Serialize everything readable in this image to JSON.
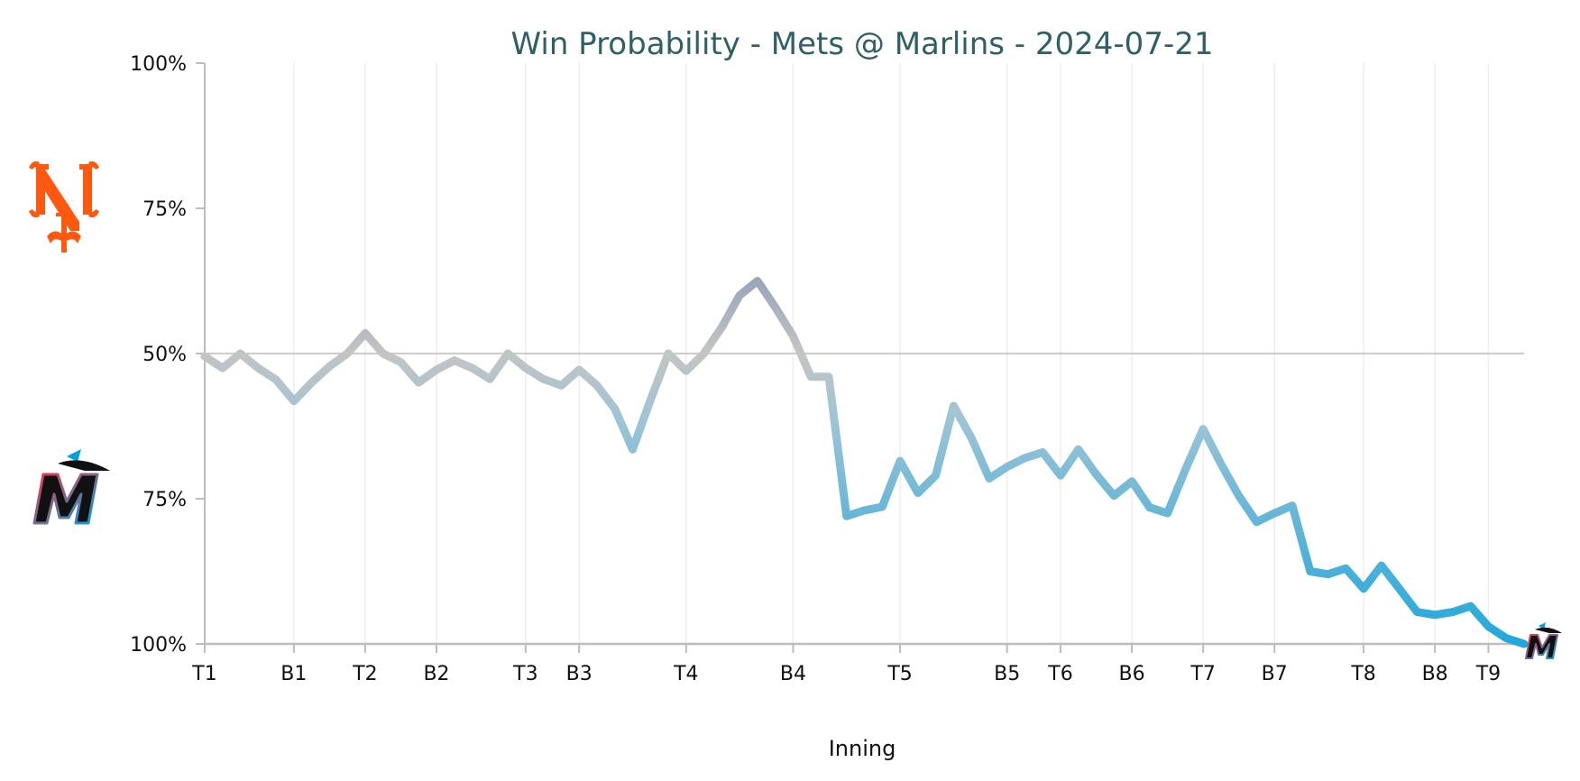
{
  "chart_data": {
    "type": "line",
    "title": "Win Probability - Mets @ Marlins - 2024-07-21",
    "xlabel": "Inning",
    "ylabel": "",
    "x_tick_labels": [
      "T1",
      "B1",
      "T2",
      "B2",
      "T3",
      "B3",
      "T4",
      "B4",
      "T5",
      "B5",
      "T6",
      "B6",
      "T7",
      "B7",
      "T8",
      "B8",
      "T9"
    ],
    "x_tick_positions": [
      0,
      5,
      9,
      13,
      18,
      21,
      27,
      33,
      39,
      45,
      48,
      52,
      56,
      60,
      65,
      69,
      72
    ],
    "x_range": [
      0,
      74
    ],
    "y_tick_values": [
      100,
      75,
      50,
      75,
      100
    ],
    "y_tick_labels": [
      "100%",
      "75%",
      "50%",
      "75%",
      "100%"
    ],
    "y_range": [
      0,
      100
    ],
    "grid": "vertical at inning ticks; horizontal reference at 50%",
    "top_team": "Mets",
    "bottom_team": "Marlins",
    "colors": {
      "title": "#2e6066",
      "mets_orange": "#ff5910",
      "marlins_blue": "#22a8dc",
      "neutral_gray": "#c4c4c4",
      "mets_gray_blue": "#9aa8ba"
    },
    "series": [
      {
        "values": [
          49.5,
          47.5,
          50,
          47.5,
          45.5,
          41.8,
          45,
          47.8,
          50,
          53.5,
          50,
          48.5,
          45,
          47.2,
          48.8,
          47.5,
          45.6,
          50,
          47.5,
          45.6,
          44.5,
          47.2,
          44.5,
          40.5,
          33.5,
          42,
          50,
          47,
          50,
          54.5,
          60,
          62.5,
          58,
          53,
          46,
          46,
          22,
          23,
          23.6,
          31.5,
          26,
          29,
          41,
          35.5,
          28.5,
          30.5,
          32,
          33,
          29,
          33.5,
          29.2,
          25.5,
          28,
          23.5,
          22.5,
          30,
          37,
          31,
          25.5,
          21,
          22.5,
          23.8,
          12.5,
          12,
          13,
          9.5,
          13.5,
          9.5,
          5.5,
          5,
          5.5,
          6.5,
          3,
          1,
          0
        ]
      }
    ],
    "logos": [
      "mets-logo",
      "marlins-logo"
    ]
  }
}
